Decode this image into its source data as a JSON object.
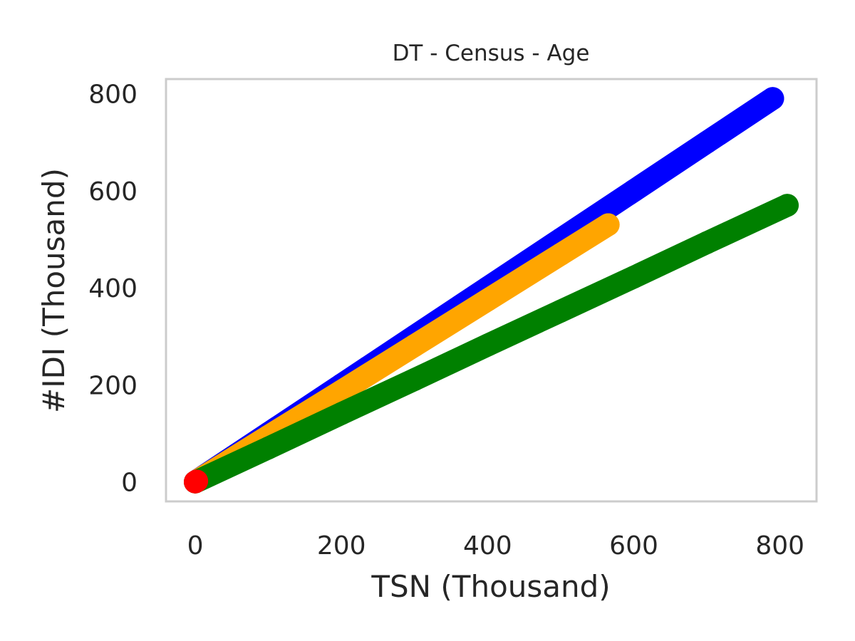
{
  "chart_data": {
    "type": "scatter",
    "title": "DT - Census - Age",
    "xlabel": "TSN (Thousand)",
    "ylabel": "#IDI (Thousand)",
    "xlim": [
      -40,
      850
    ],
    "ylim": [
      -40,
      830
    ],
    "xticks": [
      0,
      200,
      400,
      600,
      800
    ],
    "yticks": [
      0,
      200,
      400,
      600,
      800
    ],
    "grid": false,
    "legend": "none",
    "series": [
      {
        "color": "#0000ff",
        "x": [
          0,
          100,
          200,
          300,
          400,
          500,
          600,
          700,
          790
        ],
        "y": [
          0,
          100,
          200,
          300,
          400,
          500,
          600,
          700,
          790
        ]
      },
      {
        "color": "#ffa500",
        "x": [
          0,
          100,
          200,
          300,
          400,
          500,
          565
        ],
        "y": [
          0,
          94,
          187,
          281,
          375,
          469,
          530
        ]
      },
      {
        "color": "#008000",
        "x": [
          0,
          100,
          200,
          300,
          400,
          500,
          600,
          700,
          810
        ],
        "y": [
          0,
          70,
          141,
          211,
          282,
          352,
          422,
          493,
          570
        ]
      },
      {
        "color": "#ff0000",
        "x": [
          0,
          2
        ],
        "y": [
          0,
          2
        ]
      }
    ]
  }
}
